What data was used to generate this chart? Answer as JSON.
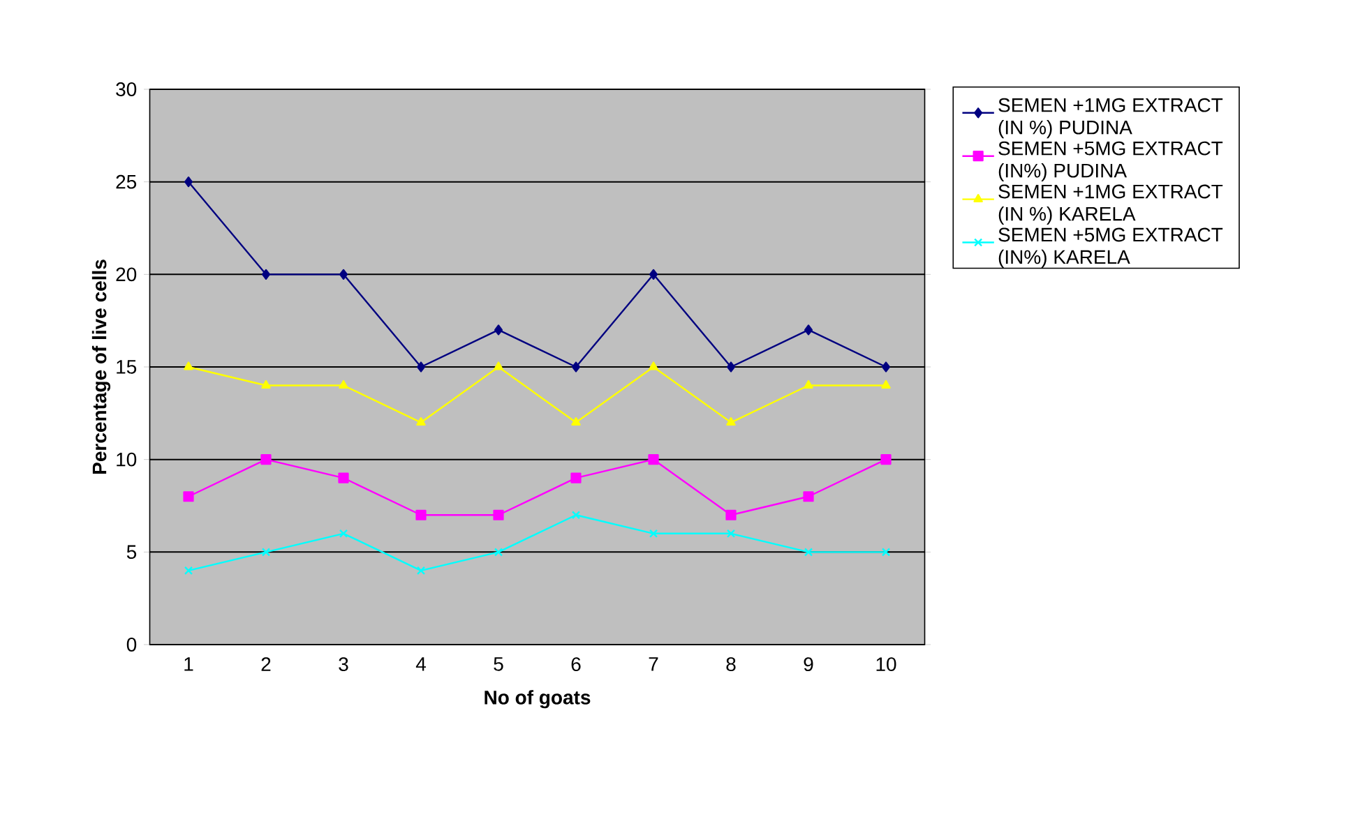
{
  "chart_data": {
    "type": "line",
    "xlabel": "No of goats",
    "ylabel": "Percentage of live cells",
    "categories": [
      "1",
      "2",
      "3",
      "4",
      "5",
      "6",
      "7",
      "8",
      "9",
      "10"
    ],
    "ylim": [
      0,
      30
    ],
    "yticks": [
      0,
      5,
      10,
      15,
      20,
      25,
      30
    ],
    "grid": "y",
    "legend": "right",
    "series": [
      {
        "name": "SEMEN +1MG EXTRACT (IN %) PUDINA",
        "color": "#000080",
        "marker": "diamond",
        "values": [
          25,
          20,
          20,
          15,
          17,
          15,
          20,
          15,
          17,
          15
        ]
      },
      {
        "name": "SEMEN +5MG EXTRACT (IN%) PUDINA",
        "color": "#ff00ff",
        "marker": "square",
        "values": [
          8,
          10,
          9,
          7,
          7,
          9,
          10,
          7,
          8,
          10
        ]
      },
      {
        "name": "SEMEN +1MG EXTRACT (IN %) KARELA",
        "color": "#ffff00",
        "marker": "triangle",
        "values": [
          15,
          14,
          14,
          12,
          15,
          12,
          15,
          12,
          14,
          14
        ]
      },
      {
        "name": "SEMEN +5MG EXTRACT (IN%) KARELA",
        "color": "#00ffff",
        "marker": "cross",
        "values": [
          4,
          5,
          6,
          4,
          5,
          7,
          6,
          6,
          5,
          5
        ]
      }
    ]
  }
}
